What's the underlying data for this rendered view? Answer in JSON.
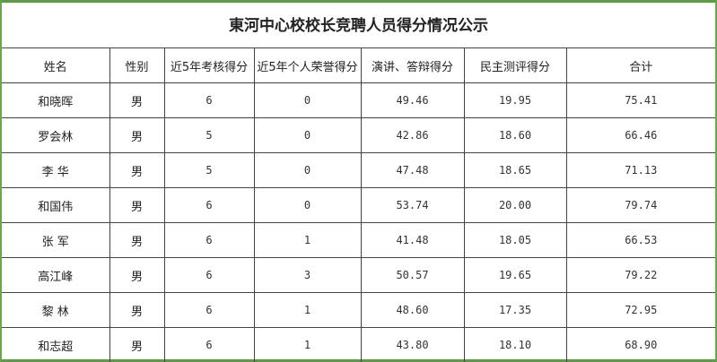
{
  "title": "東河中心校校长竞聘人员得分情况公示",
  "headers": [
    "姓名",
    "性别",
    "近5年考核得分",
    "近5年个人荣誉得分",
    "演讲、答辩得分",
    "民主测评得分",
    "合计"
  ],
  "rows": [
    [
      "和晓晖",
      "男",
      "6",
      "0",
      "49.46",
      "19.95",
      "75.41"
    ],
    [
      "罗会林",
      "男",
      "5",
      "0",
      "42.86",
      "18.60",
      "66.46"
    ],
    [
      "李 华",
      "男",
      "5",
      "0",
      "47.48",
      "18.65",
      "71.13"
    ],
    [
      "和国伟",
      "男",
      "6",
      "0",
      "53.74",
      "20.00",
      "79.74"
    ],
    [
      "张 军",
      "男",
      "6",
      "1",
      "41.48",
      "18.05",
      "66.53"
    ],
    [
      "高江峰",
      "男",
      "6",
      "3",
      "50.57",
      "19.65",
      "79.22"
    ],
    [
      "黎 林",
      "男",
      "6",
      "1",
      "48.60",
      "17.35",
      "72.95"
    ],
    [
      "和志超",
      "男",
      "6",
      "1",
      "43.80",
      "18.10",
      "68.90"
    ]
  ],
  "colors": {
    "border_accent": "#6aa84f"
  }
}
